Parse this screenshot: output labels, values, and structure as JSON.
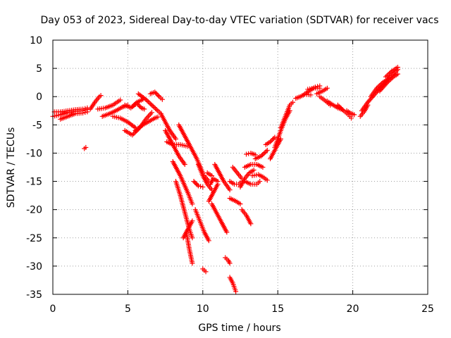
{
  "chart_data": {
    "type": "scatter",
    "title": "Day 053 of 2023, Sidereal Day-to-day VTEC variation (SDTVAR) for receiver vacs",
    "xlabel": "GPS time / hours",
    "ylabel": "SDTVAR / TECUs",
    "xlim": [
      0,
      25
    ],
    "ylim": [
      -35,
      10
    ],
    "xticks": [
      0,
      5,
      10,
      15,
      20,
      25
    ],
    "yticks": [
      -35,
      -30,
      -25,
      -20,
      -15,
      -10,
      -5,
      0,
      5,
      10
    ],
    "xtick_labels": [
      "0",
      "5",
      "10",
      "15",
      "20",
      "25"
    ],
    "ytick_labels": [
      "-35",
      "-30",
      "-25",
      "-20",
      "-15",
      "-10",
      "-5",
      "0",
      "5",
      "10"
    ],
    "grid": true,
    "marker": "+",
    "color": "#ff0000",
    "tracks": [
      {
        "name": "t1",
        "x": [
          0.0,
          0.5,
          1.0,
          1.5,
          2.0,
          2.3
        ],
        "y": [
          -3.5,
          -3.2,
          -2.8,
          -2.6,
          -2.5,
          -2.3
        ]
      },
      {
        "name": "t2",
        "x": [
          0.1,
          0.5,
          1.0,
          1.5,
          2.0,
          2.3
        ],
        "y": [
          -2.7,
          -2.7,
          -2.5,
          -2.3,
          -2.2,
          -2.0
        ]
      },
      {
        "name": "t3",
        "x": [
          0.5,
          1.0,
          1.5,
          2.0,
          2.3
        ],
        "y": [
          -4.0,
          -3.5,
          -3.0,
          -2.9,
          -2.7
        ]
      },
      {
        "name": "t4",
        "x": [
          2.1,
          2.2
        ],
        "y": [
          -9.2,
          -9.0
        ]
      },
      {
        "name": "t5",
        "x": [
          2.5,
          2.8,
          3.1,
          3.2
        ],
        "y": [
          -2.2,
          -1.0,
          0.0,
          0.2
        ]
      },
      {
        "name": "t6",
        "x": [
          3.0,
          3.5,
          4.0,
          4.5
        ],
        "y": [
          -2.2,
          -2.0,
          -1.5,
          -0.6
        ]
      },
      {
        "name": "t7",
        "x": [
          3.3,
          3.8,
          4.2,
          4.6,
          5.0
        ],
        "y": [
          -3.5,
          -3.0,
          -2.5,
          -1.9,
          -1.5
        ]
      },
      {
        "name": "t8",
        "x": [
          4.0,
          4.5,
          5.0,
          5.5
        ],
        "y": [
          -3.5,
          -3.8,
          -4.5,
          -5.5
        ]
      },
      {
        "name": "t9",
        "x": [
          4.8,
          5.3,
          5.8,
          6.2,
          6.6
        ],
        "y": [
          -6.0,
          -6.8,
          -5.5,
          -4.0,
          -2.8
        ]
      },
      {
        "name": "t10",
        "x": [
          5.5,
          6.0,
          6.4,
          6.8,
          7.0
        ],
        "y": [
          -6.0,
          -5.0,
          -4.4,
          -3.8,
          -3.6
        ]
      },
      {
        "name": "t11",
        "x": [
          4.8,
          5.2,
          5.6,
          6.0
        ],
        "y": [
          -1.5,
          -2.0,
          -1.0,
          -0.5
        ]
      },
      {
        "name": "t12",
        "x": [
          5.7,
          6.2,
          6.6,
          7.0,
          7.2
        ],
        "y": [
          0.5,
          -0.5,
          -1.5,
          -2.5,
          -3.0
        ]
      },
      {
        "name": "t13",
        "x": [
          6.5,
          6.8,
          7.1,
          7.3
        ],
        "y": [
          0.5,
          0.8,
          0.0,
          -0.5
        ]
      },
      {
        "name": "t14",
        "x": [
          5.3,
          5.6,
          5.9,
          6.1
        ],
        "y": [
          -1.8,
          -1.2,
          -2.0,
          -2.2
        ]
      },
      {
        "name": "t15",
        "x": [
          7.2,
          7.5,
          7.8,
          8.2
        ],
        "y": [
          -3.0,
          -4.5,
          -6.0,
          -7.5
        ]
      },
      {
        "name": "t16",
        "x": [
          7.5,
          7.8,
          8.1,
          8.4,
          8.8
        ],
        "y": [
          -6.0,
          -7.5,
          -9.0,
          -10.5,
          -12.0
        ]
      },
      {
        "name": "t17",
        "x": [
          7.6,
          8.0,
          8.5,
          9.0
        ],
        "y": [
          -8.0,
          -8.5,
          -8.5,
          -8.8
        ]
      },
      {
        "name": "t18",
        "x": [
          8.4,
          8.8,
          9.2,
          9.6,
          10.0
        ],
        "y": [
          -5.0,
          -7.0,
          -9.0,
          -11.0,
          -13.5
        ]
      },
      {
        "name": "t19",
        "x": [
          8.0,
          8.5,
          9.0,
          9.3
        ],
        "y": [
          -11.5,
          -14.0,
          -17.0,
          -19.0
        ]
      },
      {
        "name": "t20",
        "x": [
          8.2,
          8.5,
          8.8,
          9.1,
          9.3
        ],
        "y": [
          -15.0,
          -17.5,
          -20.5,
          -23.5,
          -25.0
        ]
      },
      {
        "name": "t21",
        "x": [
          8.7,
          9.0,
          9.3
        ],
        "y": [
          -25.0,
          -23.5,
          -22.0
        ]
      },
      {
        "name": "t22",
        "x": [
          8.9,
          9.1,
          9.3
        ],
        "y": [
          -24.0,
          -27.0,
          -29.5
        ]
      },
      {
        "name": "t23",
        "x": [
          9.4,
          9.7,
          10.0
        ],
        "y": [
          -15.0,
          -15.8,
          -16.0
        ]
      },
      {
        "name": "t24",
        "x": [
          9.5,
          9.8,
          10.1,
          10.4
        ],
        "y": [
          -20.0,
          -22.0,
          -24.0,
          -25.5
        ]
      },
      {
        "name": "t25",
        "x": [
          9.7,
          10.0,
          10.3,
          10.6
        ],
        "y": [
          -12.0,
          -14.0,
          -15.5,
          -16.5
        ]
      },
      {
        "name": "t26",
        "x": [
          10.0,
          10.2
        ],
        "y": [
          -30.5,
          -31.0
        ]
      },
      {
        "name": "t27",
        "x": [
          10.1,
          10.4
        ],
        "y": [
          -14.0,
          -15.0
        ]
      },
      {
        "name": "t28",
        "x": [
          10.3,
          10.6
        ],
        "y": [
          -13.5,
          -14.0
        ]
      },
      {
        "name": "t29",
        "x": [
          10.5,
          10.7,
          11.0
        ],
        "y": [
          -15.5,
          -14.5,
          -15.0
        ]
      },
      {
        "name": "t30",
        "x": [
          10.4,
          10.7,
          11.0
        ],
        "y": [
          -18.5,
          -17.0,
          -15.5
        ]
      },
      {
        "name": "t31",
        "x": [
          10.8,
          11.1,
          11.4,
          11.8
        ],
        "y": [
          -12.0,
          -13.5,
          -15.0,
          -16.5
        ]
      },
      {
        "name": "t32",
        "x": [
          10.6,
          10.9,
          11.2,
          11.5,
          11.6
        ],
        "y": [
          -19.0,
          -20.5,
          -22.0,
          -23.5,
          -24.0
        ]
      },
      {
        "name": "t33",
        "x": [
          11.5,
          11.7,
          11.8
        ],
        "y": [
          -28.5,
          -29.0,
          -29.5
        ]
      },
      {
        "name": "t34",
        "x": [
          11.8,
          12.0,
          12.2
        ],
        "y": [
          -32.0,
          -33.0,
          -34.5
        ]
      },
      {
        "name": "t35",
        "x": [
          11.8,
          12.2,
          12.5
        ],
        "y": [
          -18.0,
          -18.5,
          -19.0
        ]
      },
      {
        "name": "t36",
        "x": [
          11.8,
          12.1,
          12.4,
          12.6
        ],
        "y": [
          -15.0,
          -15.5,
          -15.5,
          -15.0
        ]
      },
      {
        "name": "t37",
        "x": [
          12.0,
          12.3,
          12.6
        ],
        "y": [
          -12.5,
          -13.5,
          -14.5
        ]
      },
      {
        "name": "t38",
        "x": [
          12.6,
          12.9,
          13.1,
          13.2
        ],
        "y": [
          -20.0,
          -21.0,
          -22.0,
          -22.5
        ]
      },
      {
        "name": "t39",
        "x": [
          12.5,
          12.8,
          13.1,
          13.4
        ],
        "y": [
          -16.0,
          -14.5,
          -13.5,
          -13.0
        ]
      },
      {
        "name": "t40",
        "x": [
          12.8,
          13.2,
          13.6,
          14.0
        ],
        "y": [
          -12.5,
          -12.0,
          -12.0,
          -12.5
        ]
      },
      {
        "name": "t41",
        "x": [
          12.8,
          13.2,
          13.6,
          13.8
        ],
        "y": [
          -15.0,
          -15.5,
          -15.5,
          -15.0
        ]
      },
      {
        "name": "t42",
        "x": [
          12.9,
          13.2,
          13.5
        ],
        "y": [
          -10.2,
          -10.0,
          -10.3
        ]
      },
      {
        "name": "t43",
        "x": [
          13.3,
          13.7,
          14.0,
          14.3
        ],
        "y": [
          -14.0,
          -13.8,
          -14.2,
          -14.8
        ]
      },
      {
        "name": "t44",
        "x": [
          13.5,
          13.9,
          14.3
        ],
        "y": [
          -11.0,
          -10.5,
          -9.5
        ]
      },
      {
        "name": "t45",
        "x": [
          14.2,
          14.5,
          14.8
        ],
        "y": [
          -8.5,
          -8.0,
          -7.2
        ]
      },
      {
        "name": "t46",
        "x": [
          14.5,
          14.8,
          15.2
        ],
        "y": [
          -11.0,
          -9.5,
          -7.5
        ]
      },
      {
        "name": "t47",
        "x": [
          14.8,
          15.2,
          15.5,
          15.8
        ],
        "y": [
          -9.0,
          -6.0,
          -4.0,
          -2.5
        ]
      },
      {
        "name": "t48",
        "x": [
          15.2,
          15.5,
          15.8,
          16.0
        ],
        "y": [
          -5.5,
          -3.5,
          -1.5,
          -1.0
        ]
      },
      {
        "name": "t49",
        "x": [
          16.2,
          16.5,
          16.8,
          17.2
        ],
        "y": [
          -0.3,
          0.0,
          0.4,
          0.3
        ]
      },
      {
        "name": "t50",
        "x": [
          16.8,
          17.2,
          17.5,
          17.8
        ],
        "y": [
          0.5,
          1.2,
          1.7,
          1.9
        ]
      },
      {
        "name": "t51",
        "x": [
          17.0,
          17.4,
          17.8
        ],
        "y": [
          1.3,
          1.5,
          1.5
        ]
      },
      {
        "name": "t52",
        "x": [
          17.6,
          18.0,
          18.3
        ],
        "y": [
          0.5,
          1.0,
          1.5
        ]
      },
      {
        "name": "t53",
        "x": [
          17.8,
          18.2,
          18.5
        ],
        "y": [
          0.0,
          -0.8,
          -1.5
        ]
      },
      {
        "name": "t54",
        "x": [
          18.3,
          18.7,
          19.0,
          19.3
        ],
        "y": [
          -0.8,
          -1.5,
          -2.0,
          -2.3
        ]
      },
      {
        "name": "t55",
        "x": [
          19.0,
          19.4,
          19.7,
          19.9
        ],
        "y": [
          -1.5,
          -2.5,
          -3.2,
          -3.8
        ]
      },
      {
        "name": "t56",
        "x": [
          19.6,
          19.9,
          20.1
        ],
        "y": [
          -2.5,
          -3.0,
          -3.2
        ]
      },
      {
        "name": "t57",
        "x": [
          20.5,
          20.8,
          21.0
        ],
        "y": [
          -3.5,
          -2.5,
          -1.5
        ]
      },
      {
        "name": "t58",
        "x": [
          20.6,
          21.0,
          21.5,
          22.0,
          22.5,
          23.0
        ],
        "y": [
          -2.5,
          -1.0,
          0.5,
          2.0,
          3.5,
          4.8
        ]
      },
      {
        "name": "t59",
        "x": [
          21.2,
          21.6,
          22.0,
          22.4
        ],
        "y": [
          0.0,
          1.5,
          2.5,
          3.2
        ]
      },
      {
        "name": "t60",
        "x": [
          21.8,
          22.3,
          22.7,
          23.0
        ],
        "y": [
          1.0,
          2.5,
          3.5,
          4.0
        ]
      },
      {
        "name": "t61",
        "x": [
          22.2,
          22.6,
          23.0
        ],
        "y": [
          3.5,
          4.5,
          5.2
        ]
      }
    ]
  }
}
